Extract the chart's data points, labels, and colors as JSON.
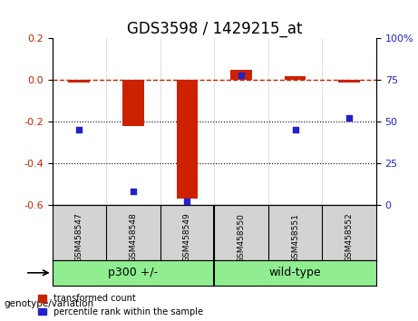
{
  "title": "GDS3598 / 1429215_at",
  "samples": [
    "GSM458547",
    "GSM458548",
    "GSM458549",
    "GSM458550",
    "GSM458551",
    "GSM458552"
  ],
  "red_values": [
    -0.01,
    -0.22,
    -0.57,
    0.05,
    0.02,
    -0.01
  ],
  "blue_values": [
    45,
    8,
    2,
    78,
    45,
    52
  ],
  "ylim_left": [
    -0.6,
    0.2
  ],
  "ylim_right": [
    0,
    100
  ],
  "yticks_left": [
    -0.6,
    -0.4,
    -0.2,
    0.0,
    0.2
  ],
  "yticks_right": [
    0,
    25,
    50,
    75,
    100
  ],
  "hline_dotted": [
    -0.2,
    -0.4
  ],
  "hline_dash": 0.0,
  "groups": [
    {
      "label": "p300 +/-",
      "samples": [
        0,
        1,
        2
      ],
      "color": "#90EE90"
    },
    {
      "label": "wild-type",
      "samples": [
        3,
        4,
        5
      ],
      "color": "#90EE90"
    }
  ],
  "group_boundary": 2.5,
  "red_color": "#CC2200",
  "blue_color": "#2222CC",
  "bar_width": 0.4,
  "blue_marker_size": 7,
  "legend_items": [
    "transformed count",
    "percentile rank within the sample"
  ],
  "xlabel_left": "",
  "ylabel_left": "",
  "genotype_label": "genotype/variation",
  "group_label_1": "p300 +/-",
  "group_label_2": "wild-type",
  "title_fontsize": 12,
  "tick_fontsize": 8,
  "label_fontsize": 8
}
